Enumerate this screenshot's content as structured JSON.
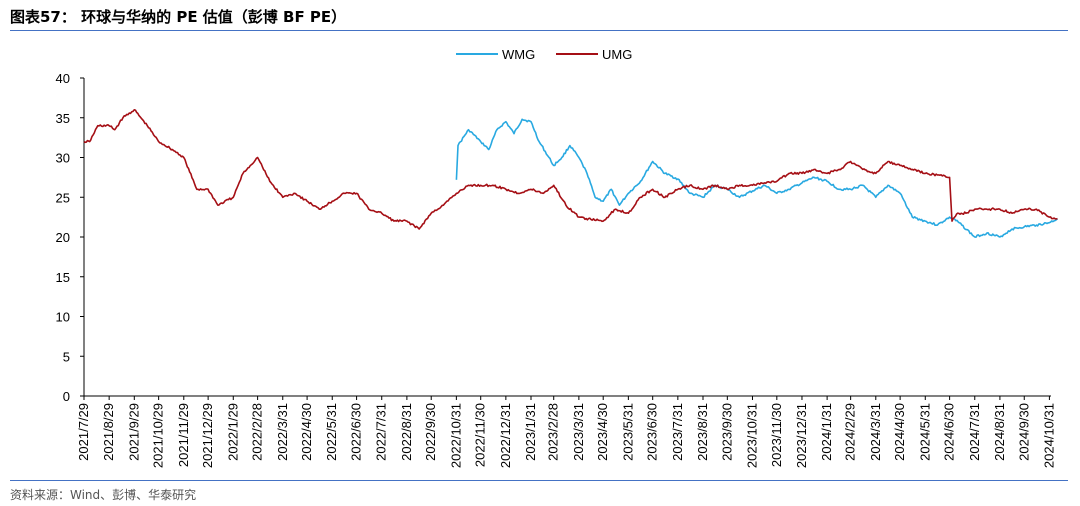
{
  "header": {
    "title": "图表57： 环球与华纳的 PE 估值（彭博 BF PE）"
  },
  "footer": {
    "source": "资料来源：Wind、彭博、华泰研究"
  },
  "colors": {
    "wmg": "#29a9e1",
    "umg": "#a50f15",
    "rule": "#4472c4"
  },
  "chart_data": {
    "type": "line",
    "title": "",
    "xlabel": "",
    "ylabel": "",
    "ylim": [
      0,
      40
    ],
    "yticks": [
      0,
      5,
      10,
      15,
      20,
      25,
      30,
      35,
      40
    ],
    "grid": false,
    "legend": "top-center",
    "x_tick_labels": [
      "2021/7/29",
      "2021/8/29",
      "2021/9/29",
      "2021/10/29",
      "2021/11/29",
      "2021/12/29",
      "2022/1/29",
      "2022/2/28",
      "2022/3/31",
      "2022/4/30",
      "2022/5/31",
      "2022/6/30",
      "2022/7/31",
      "2022/8/31",
      "2022/9/30",
      "2022/10/31",
      "2022/11/30",
      "2022/12/31",
      "2023/1/31",
      "2023/2/28",
      "2023/3/31",
      "2023/4/30",
      "2023/5/31",
      "2023/6/30",
      "2023/7/31",
      "2023/8/31",
      "2023/9/30",
      "2023/10/31",
      "2023/11/30",
      "2023/12/31",
      "2024/1/31",
      "2024/2/29",
      "2024/3/31",
      "2024/4/30",
      "2024/5/31",
      "2024/6/30",
      "2024/7/31",
      "2024/8/31",
      "2024/9/30",
      "2024/10/31"
    ],
    "series": [
      {
        "name": "WMG",
        "x": [
          "2022/10/31",
          "2022/11/2",
          "2022/11/15",
          "2022/11/30",
          "2022/12/10",
          "2022/12/20",
          "2022/12/31",
          "2023/1/10",
          "2023/1/20",
          "2023/1/31",
          "2023/2/10",
          "2023/2/28",
          "2023/3/10",
          "2023/3/20",
          "2023/3/31",
          "2023/4/10",
          "2023/4/20",
          "2023/4/30",
          "2023/5/10",
          "2023/5/20",
          "2023/5/31",
          "2023/6/15",
          "2023/6/30",
          "2023/7/15",
          "2023/7/31",
          "2023/8/15",
          "2023/8/31",
          "2023/9/15",
          "2023/9/30",
          "2023/10/15",
          "2023/10/31",
          "2023/11/15",
          "2023/11/30",
          "2023/12/15",
          "2023/12/31",
          "2024/1/15",
          "2024/1/31",
          "2024/2/15",
          "2024/2/29",
          "2024/3/15",
          "2024/3/31",
          "2024/4/15",
          "2024/4/30",
          "2024/5/15",
          "2024/5/31",
          "2024/6/15",
          "2024/6/30",
          "2024/7/5",
          "2024/7/15",
          "2024/7/31",
          "2024/8/15",
          "2024/8/31",
          "2024/9/15",
          "2024/9/30",
          "2024/10/15",
          "2024/10/31",
          "2024/11/10"
        ],
        "values": [
          27.2,
          31.5,
          33.5,
          32,
          31,
          33.5,
          34.5,
          33,
          34.8,
          34.5,
          32,
          29,
          30,
          31.5,
          30,
          28,
          25,
          24.5,
          26,
          24,
          25.5,
          27,
          29.5,
          28,
          27.3,
          25.5,
          25,
          26.5,
          26,
          25,
          25.8,
          26.5,
          25.5,
          26,
          26.8,
          27.5,
          27,
          26,
          26,
          26.5,
          25,
          26.5,
          25.5,
          22.5,
          22,
          21.5,
          22.5,
          22.3,
          21.5,
          20,
          20.5,
          20,
          21,
          21.3,
          21.5,
          21.8,
          22.3
        ]
      },
      {
        "name": "UMG",
        "x": [
          "2021/7/29",
          "2021/8/5",
          "2021/8/15",
          "2021/8/29",
          "2021/9/5",
          "2021/9/15",
          "2021/9/29",
          "2021/10/15",
          "2021/10/29",
          "2021/11/15",
          "2021/11/29",
          "2021/12/15",
          "2021/12/29",
          "2022/1/10",
          "2022/1/29",
          "2022/2/10",
          "2022/2/28",
          "2022/3/15",
          "2022/3/31",
          "2022/4/15",
          "2022/4/30",
          "2022/5/15",
          "2022/5/31",
          "2022/6/15",
          "2022/6/30",
          "2022/7/15",
          "2022/7/31",
          "2022/8/15",
          "2022/8/31",
          "2022/9/15",
          "2022/9/30",
          "2022/10/15",
          "2022/10/31",
          "2022/11/15",
          "2022/11/30",
          "2022/12/15",
          "2022/12/31",
          "2023/1/15",
          "2023/1/31",
          "2023/2/15",
          "2023/2/28",
          "2023/3/15",
          "2023/3/31",
          "2023/4/15",
          "2023/4/30",
          "2023/5/15",
          "2023/5/31",
          "2023/6/15",
          "2023/6/30",
          "2023/7/15",
          "2023/7/31",
          "2023/8/15",
          "2023/8/31",
          "2023/9/15",
          "2023/9/30",
          "2023/10/15",
          "2023/10/31",
          "2023/11/15",
          "2023/11/30",
          "2023/12/15",
          "2023/12/31",
          "2024/1/15",
          "2024/1/31",
          "2024/2/15",
          "2024/2/29",
          "2024/3/15",
          "2024/3/31",
          "2024/4/15",
          "2024/4/30",
          "2024/5/15",
          "2024/5/31",
          "2024/6/15",
          "2024/6/30",
          "2024/7/3",
          "2024/7/10",
          "2024/7/20",
          "2024/7/31",
          "2024/8/15",
          "2024/8/31",
          "2024/9/15",
          "2024/9/30",
          "2024/10/15",
          "2024/10/31",
          "2024/11/10"
        ],
        "values": [
          32,
          32,
          34,
          34,
          33.5,
          35,
          36,
          34,
          32,
          31,
          30,
          26,
          26,
          24,
          25,
          28,
          30,
          27,
          25,
          25.5,
          24.5,
          23.5,
          24.5,
          25.5,
          25.5,
          23.5,
          23,
          22,
          22,
          21,
          23,
          24,
          25.5,
          26.5,
          26.5,
          26.5,
          26,
          25.5,
          26,
          25.5,
          26.5,
          24,
          22.5,
          22.2,
          22,
          23.5,
          23,
          25,
          26,
          25,
          26,
          26.5,
          26,
          26.5,
          26,
          26.5,
          26.5,
          26.8,
          27,
          28,
          28,
          28.5,
          28,
          28.5,
          29.5,
          28.5,
          28,
          29.5,
          29,
          28.5,
          28,
          27.8,
          27.5,
          22,
          23,
          23,
          23.5,
          23.5,
          23.5,
          23,
          23.5,
          23.5,
          22.5,
          22.3
        ]
      }
    ]
  }
}
